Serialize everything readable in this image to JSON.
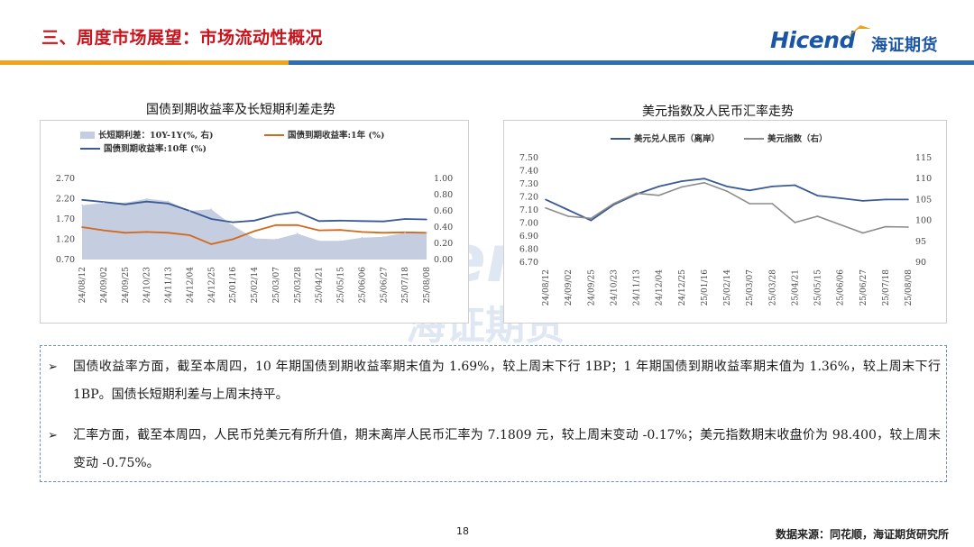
{
  "header": {
    "title": "三、周度市场展望：市场流动性概况",
    "logo_en": "Hicend",
    "logo_cn": "海证期货"
  },
  "watermark": {
    "en": "end",
    "cn": "海证期货"
  },
  "charts": {
    "left": {
      "title": "国债到期收益率及长短期利差走势",
      "legend": [
        {
          "label": "长短期利差：10Y-1Y(%, 右)",
          "color": "#c5cde0",
          "kind": "area"
        },
        {
          "label": "国债到期收益率:1年 (%)",
          "color": "#d2691e",
          "kind": "line"
        },
        {
          "label": "国债到期收益率:10年 (%)",
          "color": "#3a5a96",
          "kind": "line"
        }
      ],
      "y_left_ticks": [
        "2.70",
        "2.20",
        "1.70",
        "1.20",
        "0.70"
      ],
      "y_right_ticks": [
        "1.00",
        "0.80",
        "0.60",
        "0.40",
        "0.20",
        "0.00"
      ],
      "x_ticks": [
        "24/08/12",
        "24/09/02",
        "24/09/25",
        "24/10/23",
        "24/11/13",
        "24/12/04",
        "24/12/25",
        "25/01/16",
        "25/02/14",
        "25/03/07",
        "25/03/28",
        "25/04/21",
        "25/05/15",
        "25/06/06",
        "25/06/27",
        "25/07/18",
        "25/08/08"
      ]
    },
    "right": {
      "title": "美元指数及人民币汇率走势",
      "legend": [
        {
          "label": "美元兑人民币（离岸）",
          "color": "#3a5a96",
          "kind": "line"
        },
        {
          "label": "美元指数（右）",
          "color": "#8c8c8c",
          "kind": "line"
        }
      ],
      "y_left_ticks": [
        "7.50",
        "7.40",
        "7.30",
        "7.20",
        "7.10",
        "7.00",
        "6.90",
        "6.80",
        "6.70"
      ],
      "y_right_ticks": [
        "115",
        "110",
        "105",
        "100",
        "95",
        "90"
      ],
      "x_ticks": [
        "24/08/12",
        "24/09/02",
        "24/09/25",
        "24/10/23",
        "24/11/13",
        "24/12/04",
        "24/12/25",
        "25/01/16",
        "25/02/14",
        "25/03/07",
        "25/03/28",
        "25/04/21",
        "25/05/15",
        "25/06/06",
        "25/06/27",
        "25/07/18",
        "25/08/08"
      ]
    }
  },
  "chart_data": [
    {
      "type": "line",
      "title": "国债到期收益率及长短期利差走势",
      "x": [
        "24/08/12",
        "24/09/02",
        "24/09/25",
        "24/10/23",
        "24/11/13",
        "24/12/04",
        "24/12/25",
        "25/01/16",
        "25/02/14",
        "25/03/07",
        "25/03/28",
        "25/04/21",
        "25/05/15",
        "25/06/06",
        "25/06/27",
        "25/07/18",
        "25/08/08"
      ],
      "ylim": [
        0.7,
        2.7
      ],
      "y2lim": [
        0.0,
        1.0
      ],
      "series": [
        {
          "name": "国债到期收益率:10年 (%)",
          "axis": "left",
          "values": [
            2.17,
            2.12,
            2.06,
            2.13,
            2.08,
            1.9,
            1.7,
            1.62,
            1.66,
            1.8,
            1.87,
            1.65,
            1.66,
            1.65,
            1.64,
            1.7,
            1.69
          ]
        },
        {
          "name": "国债到期收益率:1年 (%)",
          "axis": "left",
          "values": [
            1.5,
            1.42,
            1.36,
            1.38,
            1.36,
            1.3,
            1.08,
            1.2,
            1.4,
            1.55,
            1.55,
            1.42,
            1.43,
            1.38,
            1.36,
            1.37,
            1.36
          ]
        },
        {
          "name": "长短期利差：10Y-1Y(%, 右)",
          "axis": "right",
          "values": [
            0.67,
            0.7,
            0.7,
            0.75,
            0.72,
            0.6,
            0.62,
            0.42,
            0.26,
            0.25,
            0.32,
            0.23,
            0.23,
            0.27,
            0.28,
            0.33,
            0.33
          ]
        }
      ]
    },
    {
      "type": "line",
      "title": "美元指数及人民币汇率走势",
      "x": [
        "24/08/12",
        "24/09/02",
        "24/09/25",
        "24/10/23",
        "24/11/13",
        "24/12/04",
        "24/12/25",
        "25/01/16",
        "25/02/14",
        "25/03/07",
        "25/03/28",
        "25/04/21",
        "25/05/15",
        "25/06/06",
        "25/06/27",
        "25/07/18",
        "25/08/08"
      ],
      "ylim": [
        6.7,
        7.5
      ],
      "y2lim": [
        90,
        115
      ],
      "series": [
        {
          "name": "美元兑人民币（离岸）",
          "axis": "left",
          "values": [
            7.18,
            7.1,
            7.02,
            7.14,
            7.22,
            7.28,
            7.32,
            7.34,
            7.28,
            7.25,
            7.28,
            7.29,
            7.21,
            7.19,
            7.17,
            7.18,
            7.18
          ]
        },
        {
          "name": "美元指数（右）",
          "axis": "right",
          "values": [
            103.0,
            101.0,
            100.5,
            104.0,
            106.5,
            106.0,
            108.0,
            109.0,
            107.0,
            104.0,
            104.0,
            99.5,
            101.0,
            99.0,
            97.0,
            98.5,
            98.4
          ]
        }
      ]
    }
  ],
  "notes": [
    {
      "text": "国债收益率方面，截至本周四，10 年期国债到期收益率期末值为 1.69%，较上周末下行 1BP；1 年期国债到期收益率期末值为 1.36%，较上周末下行 1BP。国债长短期利差与上周末持平。"
    },
    {
      "text": "汇率方面，截至本周四，人民币兑美元有所升值，期末离岸人民币汇率为 7.1809 元，较上周末变动 -0.17%；美元指数期末收盘价为 98.400，较上周末变动 -0.75%。"
    }
  ],
  "footer": {
    "page": "18",
    "source": "数据来源：同花顺，海证期货研究所"
  },
  "colors": {
    "title_red": "#c8151d",
    "brand_blue": "#1b56a6",
    "bar_orange": "#f0a31e",
    "bar_blue": "#2e6db4"
  }
}
